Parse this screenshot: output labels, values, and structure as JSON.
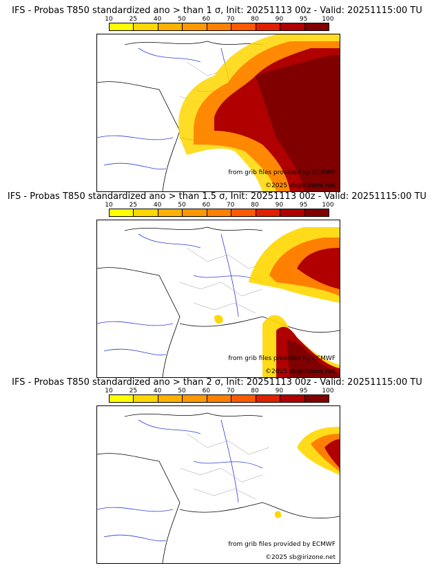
{
  "colorbar": {
    "labels": [
      "10",
      "25",
      "40",
      "50",
      "60",
      "70",
      "80",
      "90",
      "95",
      "100"
    ],
    "colors": [
      "#ffff00",
      "#ffd700",
      "#ffb000",
      "#ff9800",
      "#ff8000",
      "#ff5a00",
      "#e02000",
      "#b00000",
      "#800000"
    ]
  },
  "panels": [
    {
      "title": "IFS - Probas T850  standardized ano > than 1 σ, Init: 20251113 00z - Valid: 20251115:00 TU",
      "credit_source": "from grib files provided by ECMWF",
      "credit_copyright": "©2025 sb@irizone.net"
    },
    {
      "title": "IFS - Probas T850  standardized ano > than 1.5 σ, Init: 20251113 00z - Valid: 20251115:00 TU",
      "credit_source": "from grib files provided by ECMWF",
      "credit_copyright": "©2025 sb@irizone.net"
    },
    {
      "title": "IFS - Probas T850  standardized ano > than 2 σ, Init: 20251113 00z - Valid: 20251115:00 TU",
      "credit_source": "from grib files provided by ECMWF",
      "credit_copyright": "©2025 sb@irizone.net"
    }
  ]
}
